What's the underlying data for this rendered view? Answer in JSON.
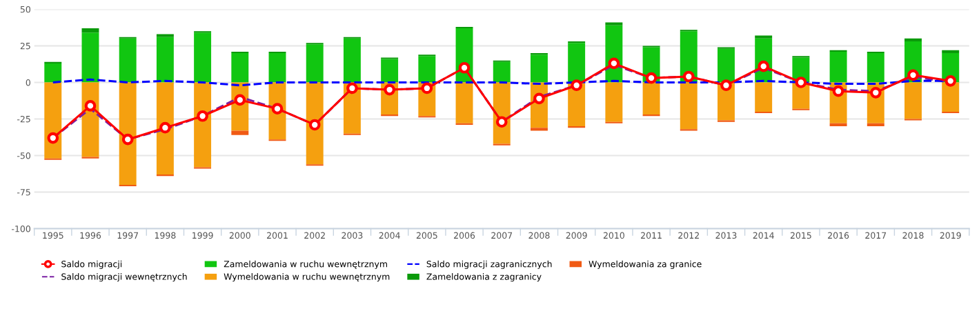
{
  "chart_data": {
    "type": "bar",
    "stacked": true,
    "categories": [
      "1995",
      "1996",
      "1997",
      "1998",
      "1999",
      "2000",
      "2001",
      "2002",
      "2003",
      "2004",
      "2005",
      "2006",
      "2007",
      "2008",
      "2009",
      "2010",
      "2011",
      "2012",
      "2013",
      "2014",
      "2015",
      "2016",
      "2017",
      "2018",
      "2019"
    ],
    "series": [
      {
        "name": "Saldo migracji",
        "type": "line",
        "color": "#ff0000",
        "marker": "circle",
        "line_style": "solid",
        "values": [
          -38,
          -16,
          -39,
          -31,
          -23,
          -12,
          -18,
          -29,
          -4,
          -5,
          -4,
          10,
          -27,
          -11,
          -2,
          13,
          3,
          4,
          -2,
          11,
          0,
          -6,
          -7,
          5,
          1
        ]
      },
      {
        "name": "Saldo migracji wewnętrznych",
        "type": "line",
        "color": "#7b1fa2",
        "marker": "none",
        "line_style": "dashed",
        "values": [
          -38,
          -18,
          -39,
          -32,
          -23,
          -10,
          -18,
          -29,
          -4,
          -5,
          -4,
          10,
          -27,
          -10,
          -2,
          12,
          3,
          4,
          -2,
          10,
          0,
          -5,
          -6,
          4,
          0
        ]
      },
      {
        "name": "Zameldowania w ruchu wewnętrznym",
        "color": "#11c611",
        "values": [
          13,
          34,
          30,
          31,
          34,
          20,
          20,
          26,
          30,
          16,
          18,
          37,
          14,
          19,
          27,
          39,
          24,
          35,
          23,
          30,
          17,
          21,
          20,
          28,
          20
        ]
      },
      {
        "name": "Wymeldowania w ruchu wewnętrznym",
        "color": "#f5a00f",
        "values": [
          -52,
          -51,
          -70,
          -63,
          -58,
          -33,
          -39,
          -56,
          -35,
          -22,
          -23,
          -28,
          -42,
          -31,
          -30,
          -27,
          -22,
          -32,
          -26,
          -20,
          -18,
          -28,
          -28,
          -25,
          -20
        ]
      },
      {
        "name": "Saldo migracji zagranicznych",
        "type": "line",
        "color": "#0000ff",
        "marker": "none",
        "line_style": "dashed",
        "values": [
          0,
          2,
          0,
          1,
          0,
          -2,
          0,
          0,
          0,
          0,
          0,
          0,
          0,
          -1,
          0,
          1,
          0,
          0,
          0,
          1,
          0,
          -1,
          -1,
          1,
          1
        ]
      },
      {
        "name": "Zameldowania z zagranicy",
        "color": "#0a9a0a",
        "values": [
          1,
          3,
          1,
          2,
          1,
          1,
          1,
          1,
          1,
          1,
          1,
          1,
          1,
          1,
          1,
          2,
          1,
          1,
          1,
          2,
          1,
          1,
          1,
          2,
          2
        ]
      },
      {
        "name": "Wymeldowania za granice",
        "color": "#f05a14",
        "values": [
          -1,
          -1,
          -1,
          -1,
          -1,
          -3,
          -1,
          -1,
          -1,
          -1,
          -1,
          -1,
          -1,
          -2,
          -1,
          -1,
          -1,
          -1,
          -1,
          -1,
          -1,
          -2,
          -2,
          -1,
          -1
        ]
      }
    ],
    "ylim": [
      -100,
      50
    ],
    "yticks": [
      -100,
      -75,
      -50,
      -25,
      0,
      25,
      50
    ],
    "grid": "y",
    "legend": "bottom"
  }
}
